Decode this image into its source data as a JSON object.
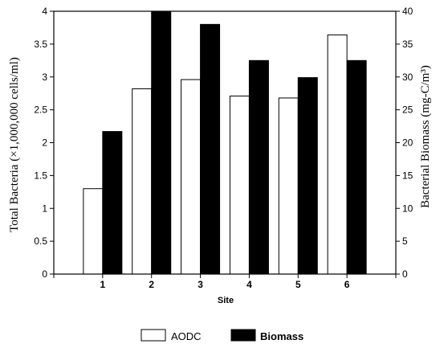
{
  "chart_data": {
    "type": "bar",
    "categories": [
      "1",
      "2",
      "3",
      "4",
      "5",
      "6"
    ],
    "series": [
      {
        "name": "AODC",
        "axis": "left",
        "values": [
          1.3,
          2.82,
          2.96,
          2.71,
          2.68,
          3.64
        ],
        "color": "#ffffff"
      },
      {
        "name": "Biomass",
        "axis": "right",
        "values": [
          21.7,
          40.0,
          38.0,
          32.5,
          29.9,
          32.5
        ],
        "color": "#000000"
      }
    ],
    "xlabel": "Site",
    "ylabel": "Total Bacteria (×1,000,000 cells/ml)",
    "y2label": "Bacterial Biomass (mg-C/m³)",
    "ylim": [
      0,
      4
    ],
    "y2lim": [
      0,
      40
    ],
    "yticks": [
      "0",
      "0.5",
      "1",
      "1.5",
      "2",
      "2.5",
      "3",
      "3.5",
      "4"
    ],
    "y2ticks": [
      "0",
      "5",
      "10",
      "15",
      "20",
      "25",
      "30",
      "35",
      "40"
    ],
    "grid": false,
    "legend_position": "bottom-center"
  }
}
